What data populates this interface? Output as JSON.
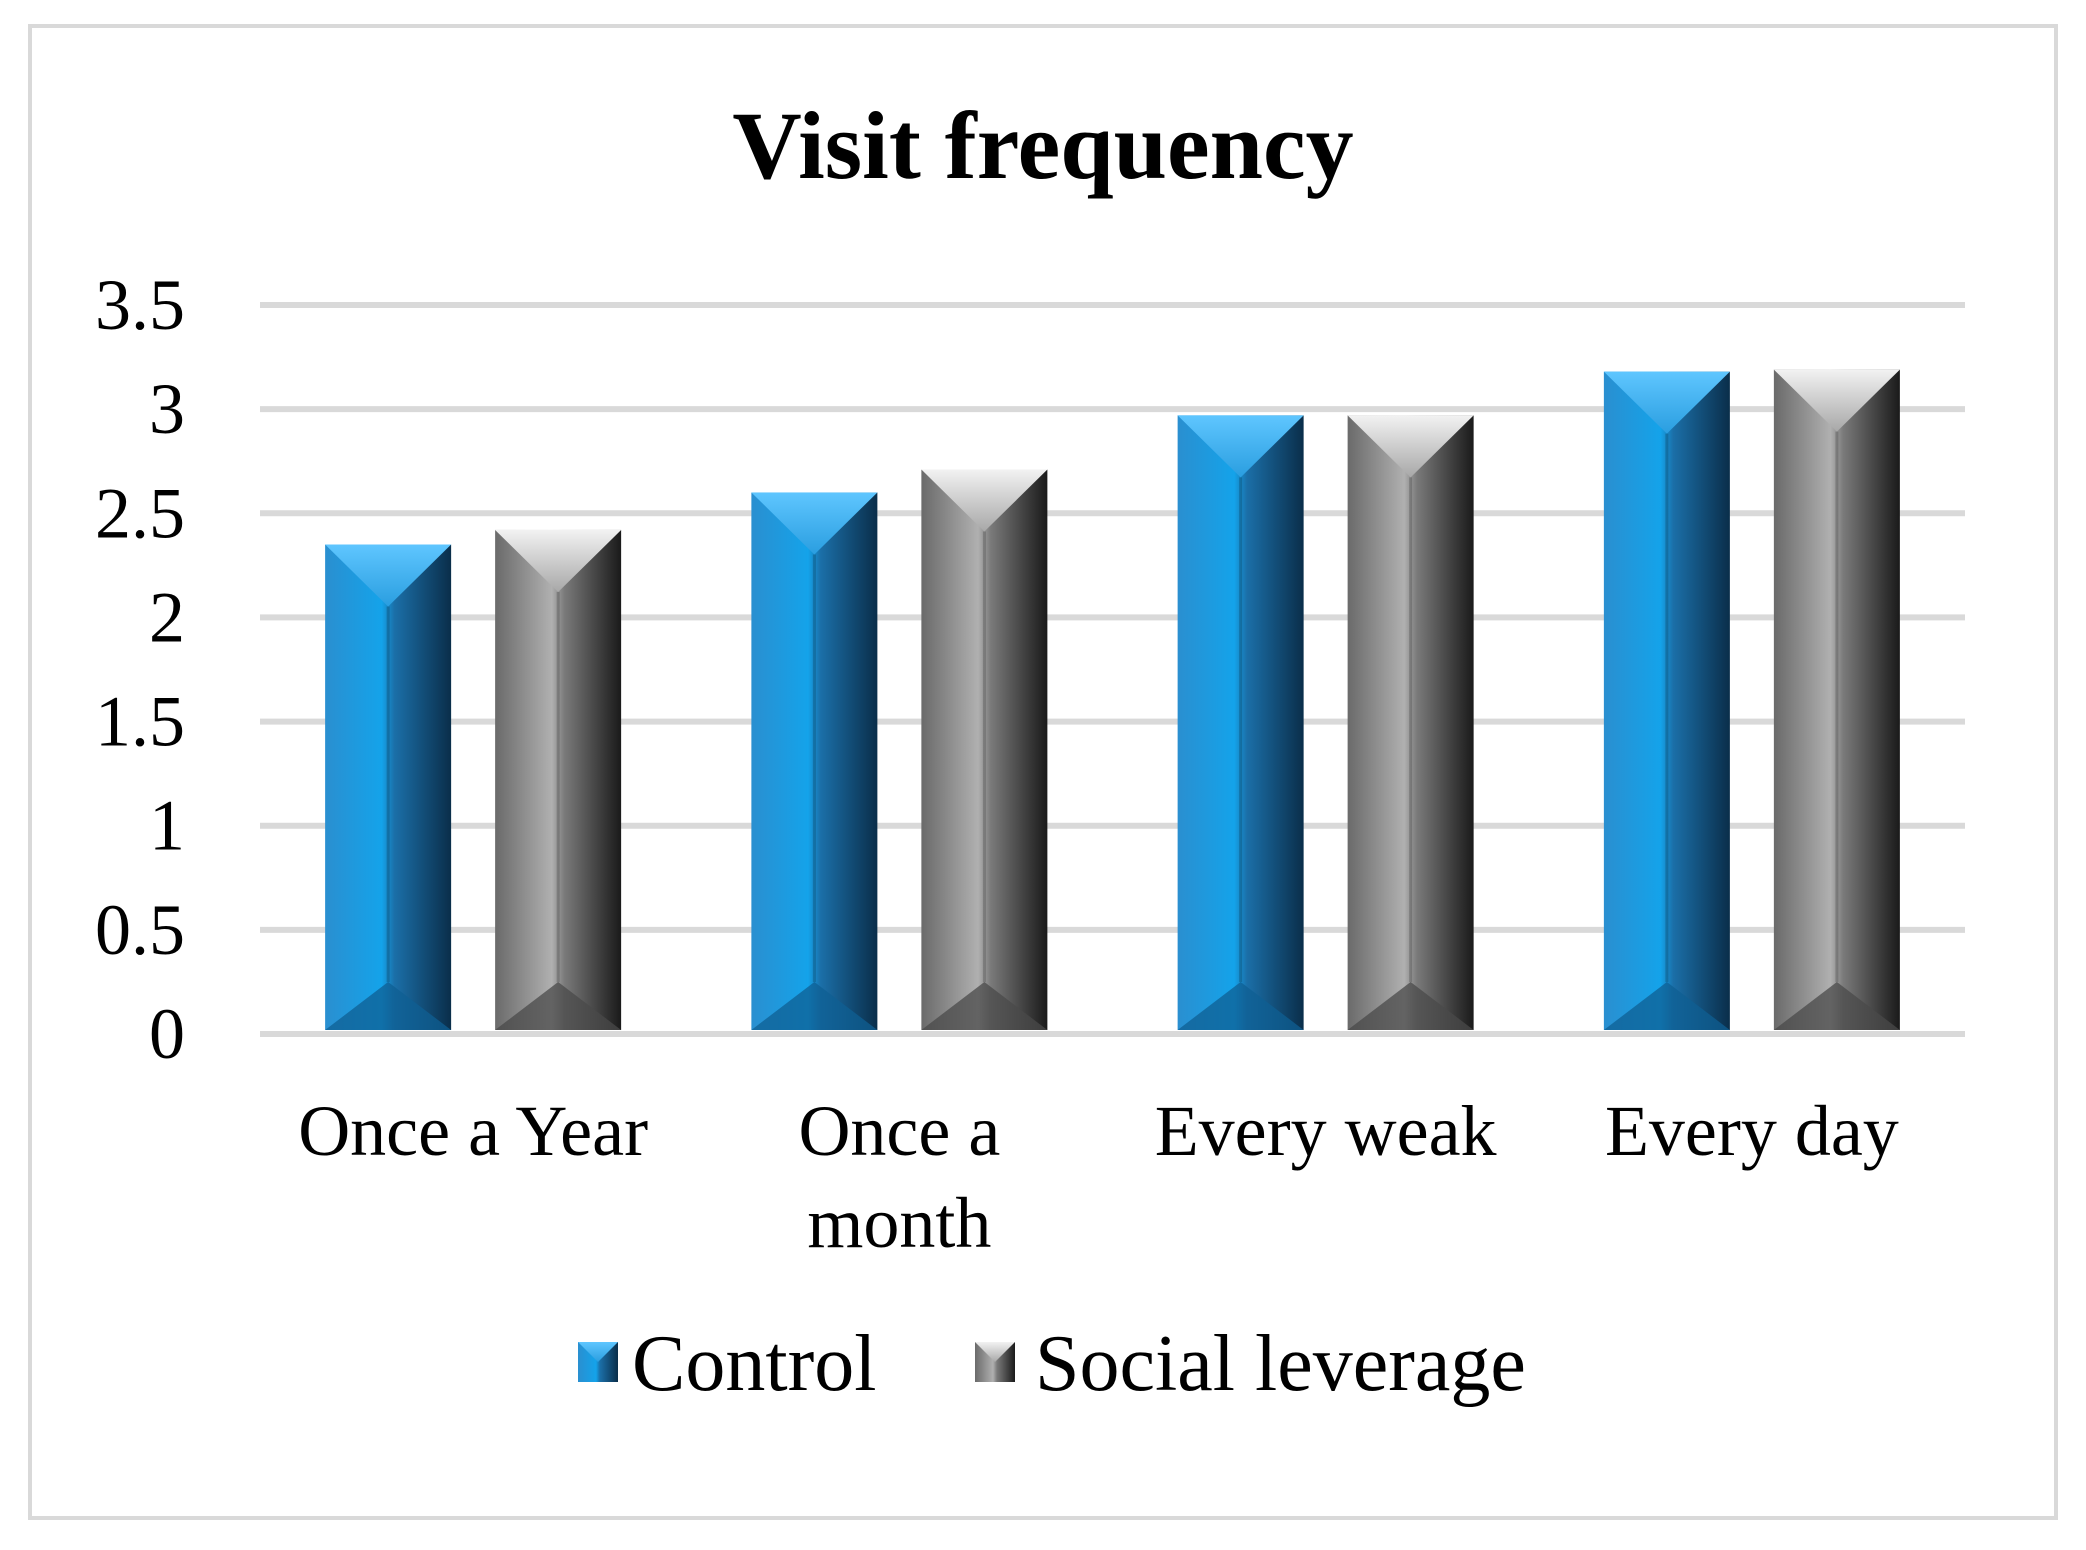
{
  "chart_data": {
    "type": "bar",
    "title": "Visit frequency",
    "categories": [
      [
        "Once a Year"
      ],
      [
        "Once a",
        "month"
      ],
      [
        "Every weak"
      ],
      [
        "Every day"
      ]
    ],
    "series": [
      {
        "name": "Control",
        "values": [
          2.35,
          2.6,
          2.97,
          3.18
        ],
        "color": "#1f8fd6"
      },
      {
        "name": "Social leverage",
        "values": [
          2.42,
          2.71,
          2.97,
          3.19
        ],
        "color": "#8c8c8c"
      }
    ],
    "ylim": [
      0,
      3.5
    ],
    "yticks": [
      "0",
      "0.5",
      "1",
      "1.5",
      "2",
      "2.5",
      "3",
      "3.5"
    ],
    "xlabel": "",
    "ylabel": "",
    "grid": true,
    "legend_position": "bottom"
  }
}
